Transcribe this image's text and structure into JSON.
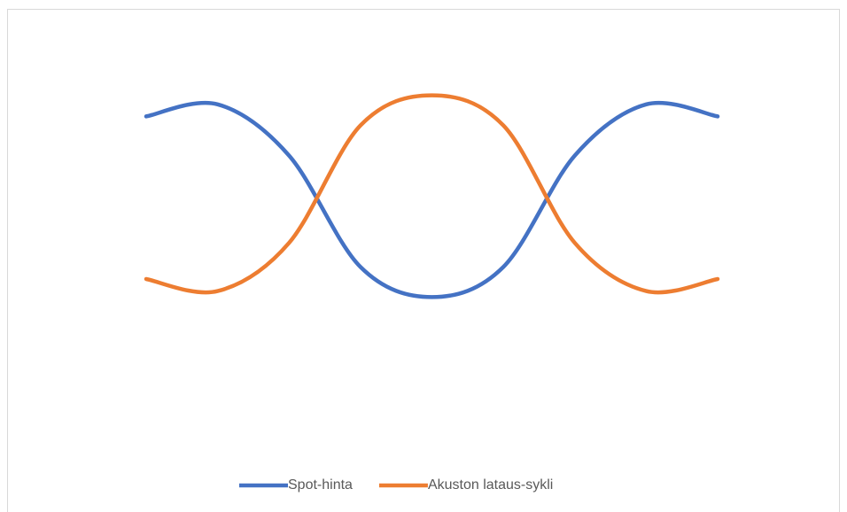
{
  "chart_data": {
    "type": "line",
    "categories": [
      null,
      null,
      null,
      null,
      null,
      null,
      null,
      null,
      null
    ],
    "series": [
      {
        "name": "Spot-hinta",
        "color": "#4472c4",
        "values": [
          7.9,
          8.3,
          6.6,
          2.9,
          1.9,
          2.9,
          6.6,
          8.3,
          7.9
        ]
      },
      {
        "name": "Akuston lataus-sykli",
        "color": "#ed7d31",
        "values": [
          2.5,
          2.1,
          3.7,
          7.6,
          8.6,
          7.6,
          3.7,
          2.1,
          2.5
        ]
      }
    ],
    "ylim": [
      0,
      10
    ],
    "grid": false,
    "smooth": true,
    "legend": "bottom"
  }
}
